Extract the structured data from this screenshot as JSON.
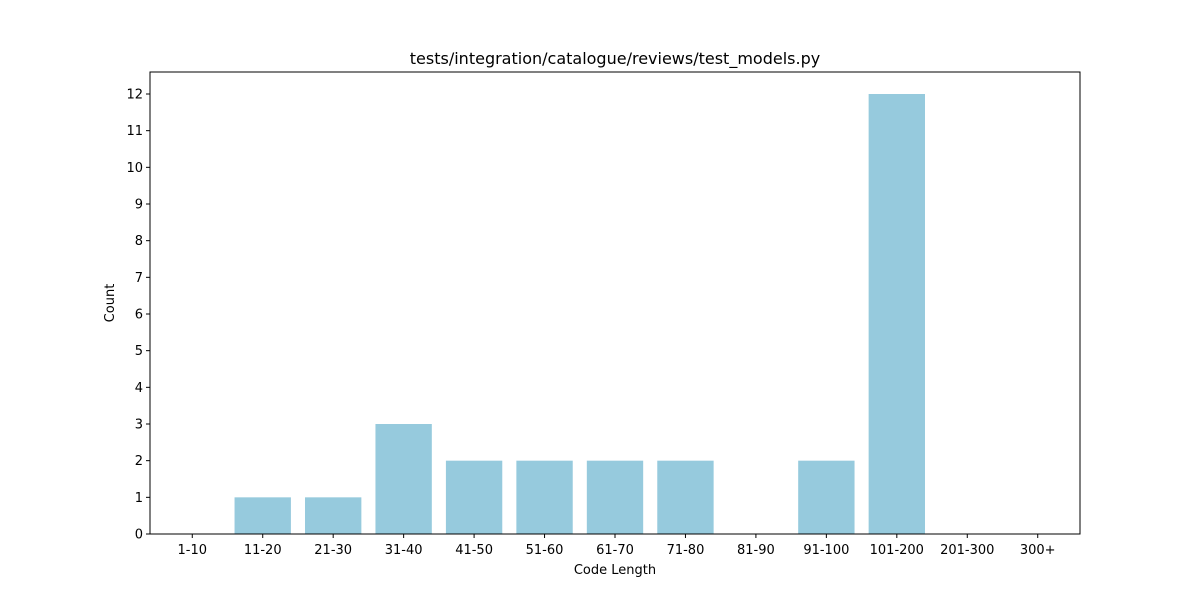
{
  "chart_data": {
    "type": "bar",
    "title": "tests/integration/catalogue/reviews/test_models.py",
    "xlabel": "Code Length",
    "ylabel": "Count",
    "categories": [
      "1-10",
      "11-20",
      "21-30",
      "31-40",
      "41-50",
      "51-60",
      "61-70",
      "71-80",
      "81-90",
      "91-100",
      "101-200",
      "201-300",
      "300+"
    ],
    "values": [
      0,
      1,
      1,
      3,
      2,
      2,
      2,
      2,
      0,
      2,
      12,
      0,
      0
    ],
    "ylim": [
      0,
      12.6
    ],
    "yticks": [
      0,
      1,
      2,
      3,
      4,
      5,
      6,
      7,
      8,
      9,
      10,
      11,
      12
    ],
    "grid": false,
    "legend": "none",
    "colors": {
      "bar": "#96cadd",
      "axis": "#000000",
      "background": "#ffffff"
    }
  }
}
